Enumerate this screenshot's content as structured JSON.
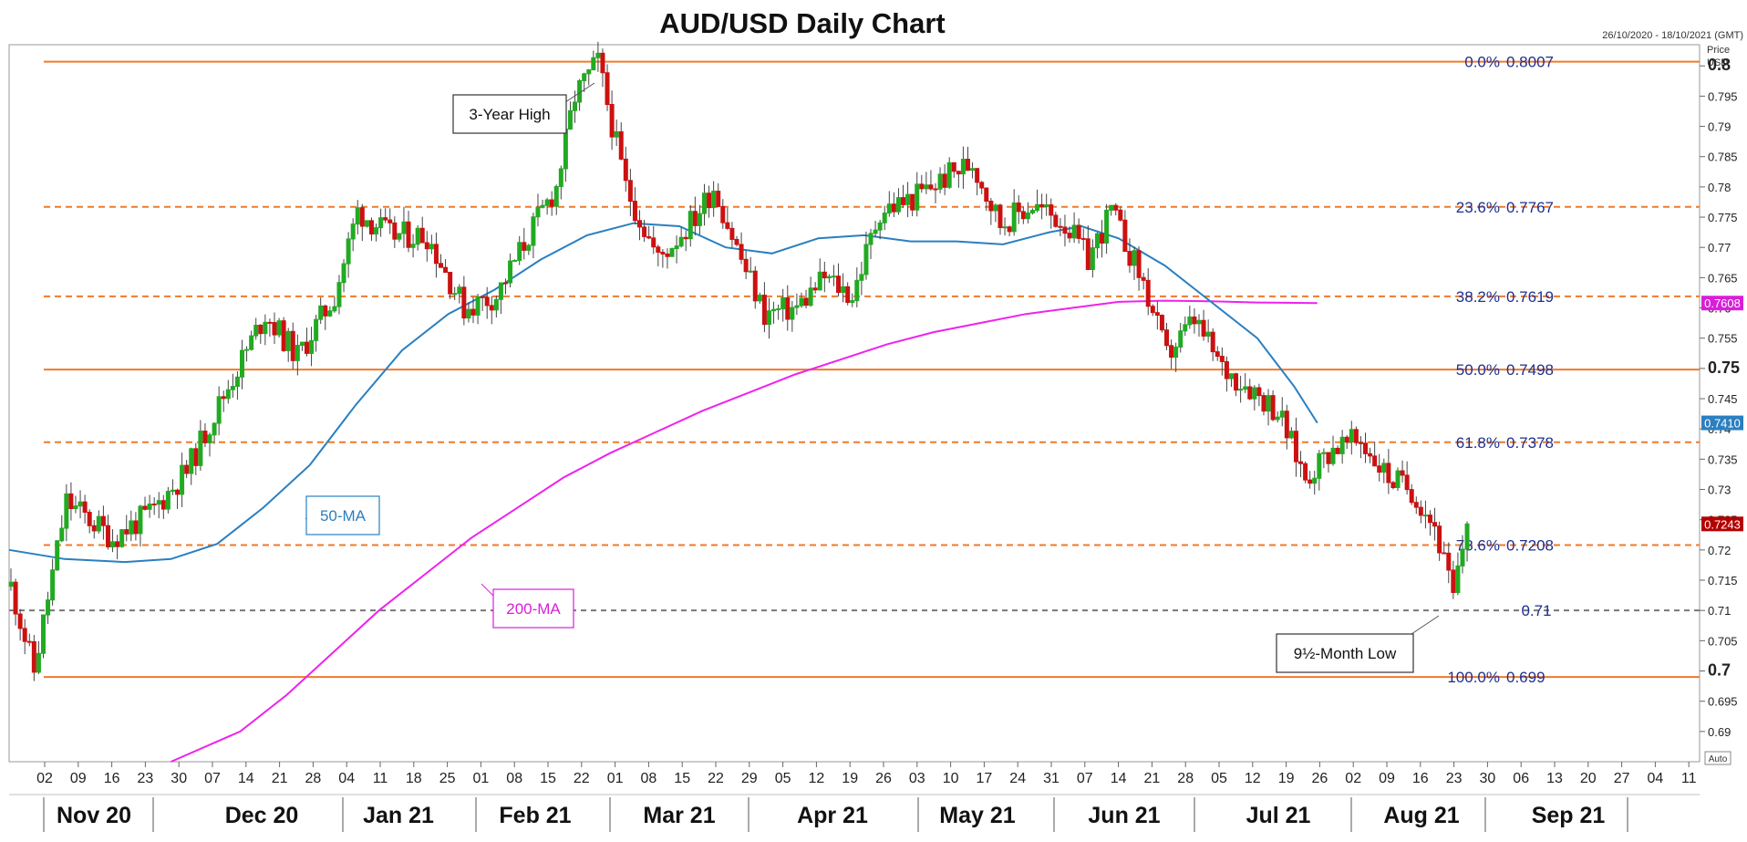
{
  "chart_data": {
    "type": "candlestick",
    "title": "AUD/USD Daily Chart",
    "date_range": "26/10/2020 - 18/10/2021 (GMT)",
    "price_label_line1": "Price",
    "price_label_line2": "USD",
    "auto_label": "Auto",
    "y_range": [
      0.685,
      0.8035
    ],
    "y_ticks": [
      "0.69",
      "0.695",
      "0.7",
      "0.705",
      "0.71",
      "0.715",
      "0.72",
      "0.725",
      "0.73",
      "0.735",
      "0.74",
      "0.745",
      "0.75",
      "0.755",
      "0.76",
      "0.765",
      "0.77",
      "0.775",
      "0.78",
      "0.785",
      "0.79",
      "0.795",
      "0.8"
    ],
    "bold_ticks": [
      "0.7",
      "0.75",
      "0.8"
    ],
    "x_day_labels": [
      "02",
      "09",
      "16",
      "23",
      "30",
      "07",
      "14",
      "21",
      "28",
      "04",
      "11",
      "18",
      "25",
      "01",
      "08",
      "15",
      "22",
      "01",
      "08",
      "15",
      "22",
      "29",
      "05",
      "12",
      "19",
      "26",
      "03",
      "10",
      "17",
      "24",
      "31",
      "07",
      "14",
      "21",
      "28",
      "05",
      "12",
      "19",
      "26",
      "02",
      "09",
      "16",
      "23",
      "30",
      "06",
      "13",
      "20",
      "27",
      "04",
      "11"
    ],
    "x_month_labels": [
      "Nov 20",
      "Dec 20",
      "Jan 21",
      "Feb 21",
      "Mar 21",
      "Apr 21",
      "May 21",
      "Jun 21",
      "Jul 21",
      "Aug 21",
      "Sep 21"
    ],
    "fib_levels": [
      {
        "pct": "0.0%",
        "value": "0.8007",
        "price": 0.8007,
        "style": "solid"
      },
      {
        "pct": "23.6%",
        "value": "0.7767",
        "price": 0.7767,
        "style": "dashed"
      },
      {
        "pct": "38.2%",
        "value": "0.7619",
        "price": 0.7619,
        "style": "dashed"
      },
      {
        "pct": "50.0%",
        "value": "0.7498",
        "price": 0.7498,
        "style": "solid"
      },
      {
        "pct": "61.8%",
        "value": "0.7378",
        "price": 0.7378,
        "style": "dashed"
      },
      {
        "pct": "78.6%",
        "value": "0.7208",
        "price": 0.7208,
        "style": "dashed"
      },
      {
        "pct": "100.0%",
        "value": "0.699",
        "price": 0.699,
        "style": "solid"
      }
    ],
    "support_line": {
      "value": "0.71",
      "price": 0.71
    },
    "ma50": {
      "label": "50-MA",
      "color": "#2a7fc0",
      "last": "0.7410",
      "points": [
        [
          0,
          0.72
        ],
        [
          12,
          0.7185
        ],
        [
          25,
          0.718
        ],
        [
          35,
          0.7185
        ],
        [
          45,
          0.721
        ],
        [
          55,
          0.727
        ],
        [
          65,
          0.734
        ],
        [
          75,
          0.744
        ],
        [
          85,
          0.753
        ],
        [
          95,
          0.759
        ],
        [
          105,
          0.763
        ],
        [
          115,
          0.768
        ],
        [
          125,
          0.772
        ],
        [
          135,
          0.774
        ],
        [
          145,
          0.7735
        ],
        [
          155,
          0.77
        ],
        [
          165,
          0.769
        ],
        [
          175,
          0.7715
        ],
        [
          185,
          0.772
        ],
        [
          195,
          0.771
        ],
        [
          205,
          0.771
        ],
        [
          215,
          0.7705
        ],
        [
          225,
          0.7725
        ],
        [
          232,
          0.7735
        ],
        [
          240,
          0.7715
        ],
        [
          250,
          0.767
        ],
        [
          260,
          0.761
        ],
        [
          270,
          0.755
        ],
        [
          278,
          0.747
        ],
        [
          283,
          0.741
        ]
      ]
    },
    "ma200": {
      "label": "200-MA",
      "color": "#ee22ee",
      "last": "0.7608",
      "points": [
        [
          35,
          0.685
        ],
        [
          50,
          0.69
        ],
        [
          60,
          0.696
        ],
        [
          70,
          0.703
        ],
        [
          80,
          0.71
        ],
        [
          90,
          0.716
        ],
        [
          100,
          0.722
        ],
        [
          110,
          0.727
        ],
        [
          120,
          0.732
        ],
        [
          130,
          0.736
        ],
        [
          140,
          0.7395
        ],
        [
          150,
          0.743
        ],
        [
          160,
          0.746
        ],
        [
          170,
          0.749
        ],
        [
          180,
          0.7515
        ],
        [
          190,
          0.754
        ],
        [
          200,
          0.756
        ],
        [
          210,
          0.7575
        ],
        [
          220,
          0.759
        ],
        [
          230,
          0.76
        ],
        [
          240,
          0.761
        ],
        [
          250,
          0.7612
        ],
        [
          260,
          0.7611
        ],
        [
          270,
          0.7609
        ],
        [
          283,
          0.7608
        ]
      ]
    },
    "anchors": [
      [
        0,
        0.714
      ],
      [
        5,
        0.7
      ],
      [
        12,
        0.728
      ],
      [
        22,
        0.722
      ],
      [
        30,
        0.726
      ],
      [
        38,
        0.733
      ],
      [
        45,
        0.744
      ],
      [
        55,
        0.759
      ],
      [
        62,
        0.752
      ],
      [
        70,
        0.762
      ],
      [
        75,
        0.776
      ],
      [
        82,
        0.772
      ],
      [
        90,
        0.772
      ],
      [
        98,
        0.76
      ],
      [
        105,
        0.762
      ],
      [
        112,
        0.772
      ],
      [
        118,
        0.78
      ],
      [
        122,
        0.795
      ],
      [
        127,
        0.8007
      ],
      [
        133,
        0.78
      ],
      [
        140,
        0.768
      ],
      [
        148,
        0.775
      ],
      [
        152,
        0.78
      ],
      [
        158,
        0.768
      ],
      [
        163,
        0.759
      ],
      [
        170,
        0.76
      ],
      [
        176,
        0.765
      ],
      [
        182,
        0.762
      ],
      [
        188,
        0.776
      ],
      [
        195,
        0.778
      ],
      [
        203,
        0.782
      ],
      [
        208,
        0.784
      ],
      [
        214,
        0.774
      ],
      [
        221,
        0.777
      ],
      [
        228,
        0.774
      ],
      [
        233,
        0.768
      ],
      [
        238,
        0.776
      ],
      [
        245,
        0.764
      ],
      [
        250,
        0.752
      ],
      [
        256,
        0.758
      ],
      [
        262,
        0.75
      ],
      [
        268,
        0.747
      ],
      [
        274,
        0.743
      ],
      [
        280,
        0.732
      ],
      [
        286,
        0.737
      ],
      [
        292,
        0.738
      ],
      [
        298,
        0.732
      ],
      [
        303,
        0.73
      ],
      [
        308,
        0.724
      ],
      [
        312,
        0.712
      ],
      [
        315,
        0.7243
      ]
    ],
    "current_price": "0.7243",
    "annotations": [
      {
        "text": "3-Year High"
      },
      {
        "text": "9½-Month Low"
      }
    ]
  }
}
